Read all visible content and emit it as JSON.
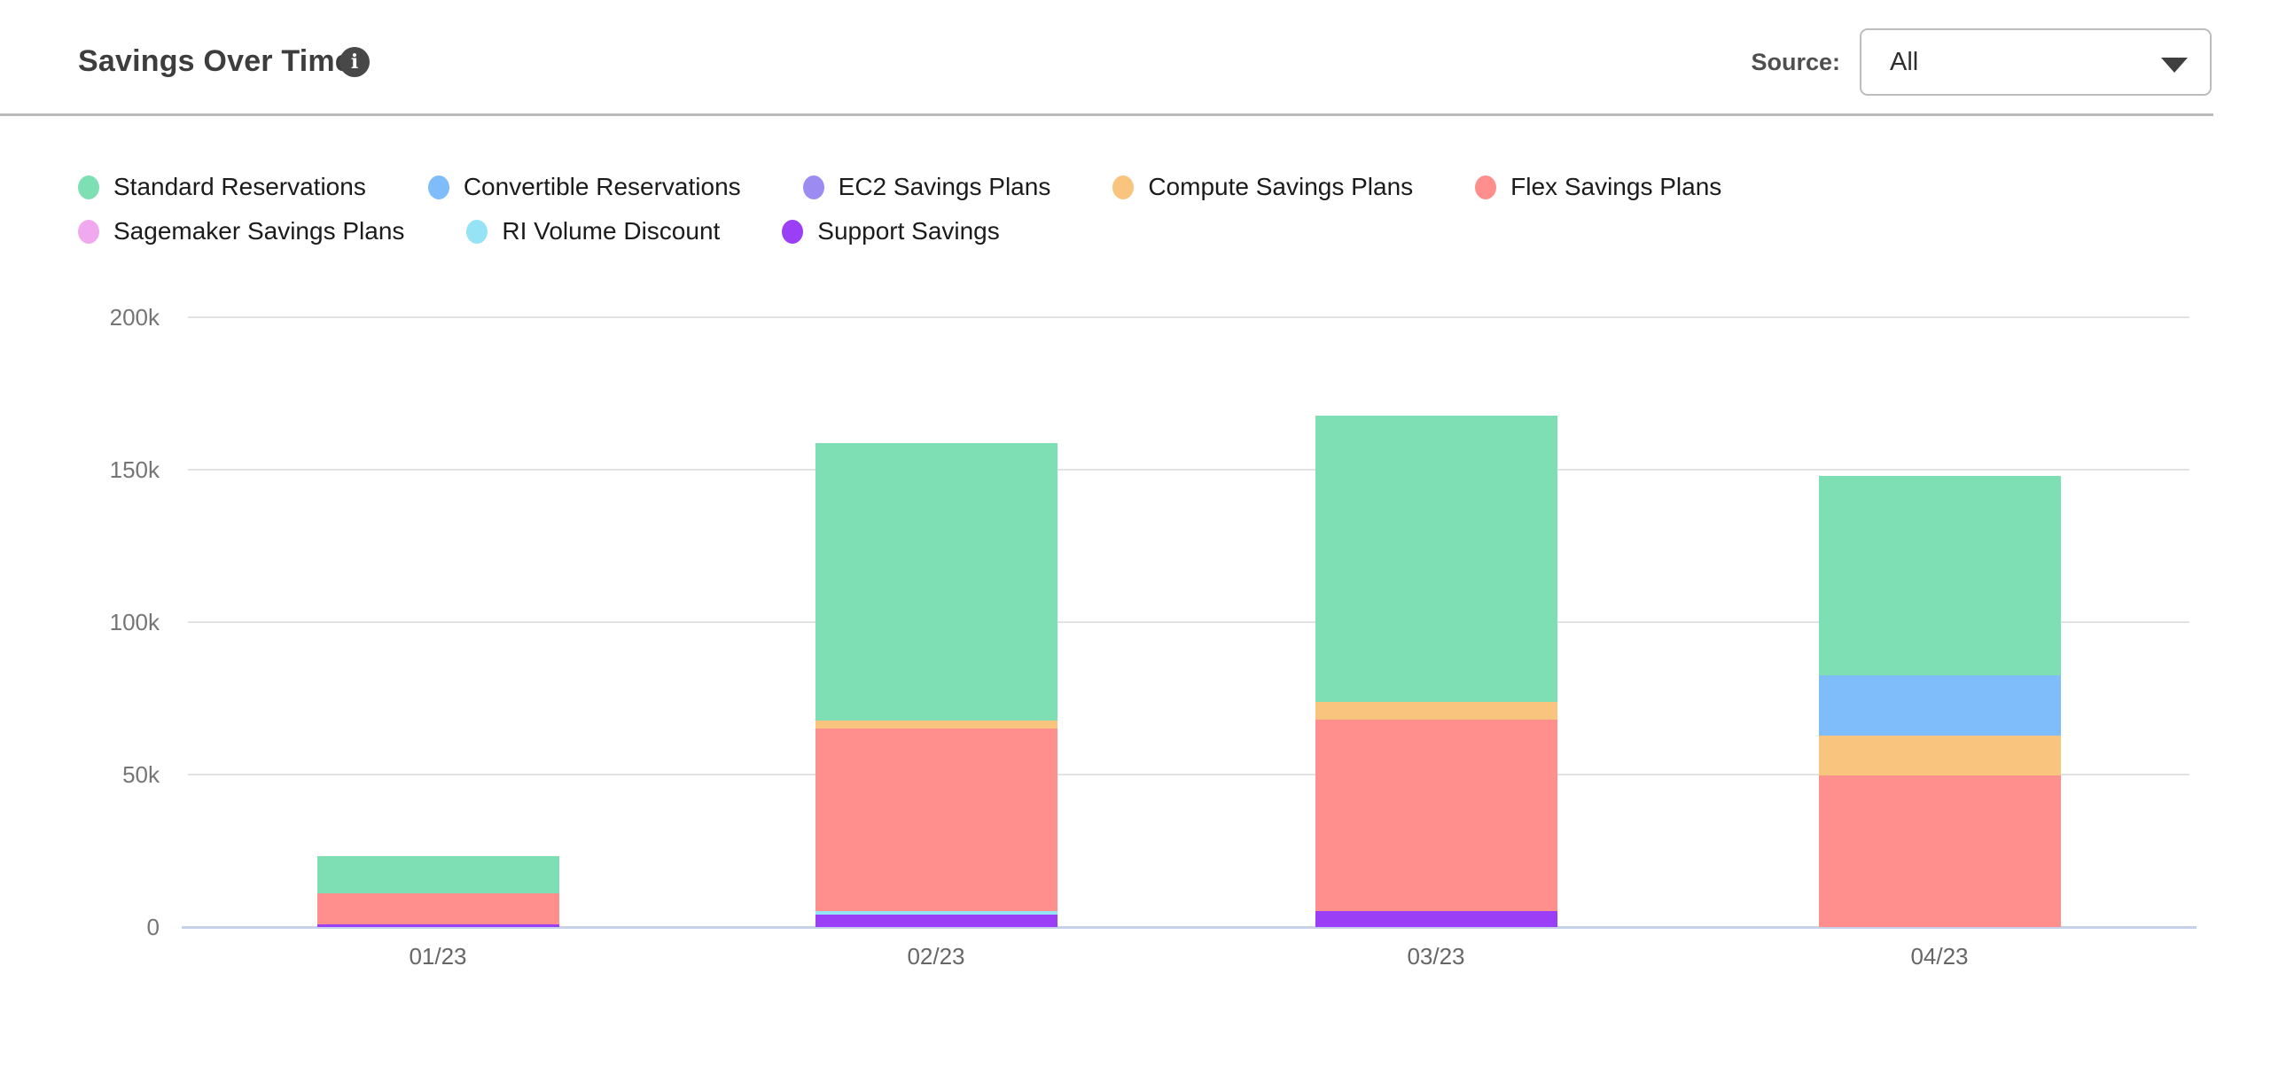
{
  "header": {
    "title": "Savings Over Time",
    "info_icon_glyph": "i",
    "source_label": "Source:",
    "source_value": "All"
  },
  "legend": {
    "rows": [
      [
        {
          "label": "Standard Reservations",
          "color": "#7edeb4"
        },
        {
          "label": "Convertible Reservations",
          "color": "#7ebcfa"
        },
        {
          "label": "EC2 Savings Plans",
          "color": "#9c8cf2"
        },
        {
          "label": "Compute Savings Plans",
          "color": "#f9c57e"
        },
        {
          "label": "Flex Savings Plans",
          "color": "#ff8f8d"
        }
      ],
      [
        {
          "label": "Sagemaker Savings Plans",
          "color": "#f0a9ef"
        },
        {
          "label": "RI Volume Discount",
          "color": "#97e3f6"
        },
        {
          "label": "Support Savings",
          "color": "#9a3ff6"
        }
      ]
    ]
  },
  "chart_data": {
    "type": "bar",
    "stacked": true,
    "title": "Savings Over Time",
    "categories": [
      "01/23",
      "02/23",
      "03/23",
      "04/23"
    ],
    "value_unit": "thousands",
    "series": [
      {
        "name": "Standard Reservations",
        "color": "#7edeb4",
        "values": [
          12.2,
          91.0,
          94.0,
          65.5
        ]
      },
      {
        "name": "Convertible Reservations",
        "color": "#7ebcfa",
        "values": [
          0,
          0,
          0,
          19.8
        ]
      },
      {
        "name": "EC2 Savings Plans",
        "color": "#9c8cf2",
        "values": [
          0,
          0,
          0,
          0
        ]
      },
      {
        "name": "Compute Savings Plans",
        "color": "#f9c57e",
        "values": [
          0,
          2.6,
          5.8,
          13.0
        ]
      },
      {
        "name": "Flex Savings Plans",
        "color": "#ff8f8d",
        "values": [
          10.2,
          60.0,
          62.8,
          49.7
        ]
      },
      {
        "name": "Sagemaker Savings Plans",
        "color": "#f0a9ef",
        "values": [
          0,
          0,
          0,
          0
        ]
      },
      {
        "name": "RI Volume Discount",
        "color": "#97e3f6",
        "values": [
          0,
          1.2,
          0,
          0
        ]
      },
      {
        "name": "Support Savings",
        "color": "#9a3ff6",
        "values": [
          0.9,
          4.0,
          5.2,
          0
        ]
      }
    ],
    "stack_order_bottom_to_top": [
      "Support Savings",
      "RI Volume Discount",
      "Sagemaker Savings Plans",
      "Flex Savings Plans",
      "Compute Savings Plans",
      "EC2 Savings Plans",
      "Convertible Reservations",
      "Standard Reservations"
    ],
    "totals": [
      23.3,
      158.8,
      167.8,
      148.0
    ],
    "y_ticks": [
      "0",
      "50k",
      "100k",
      "150k",
      "200k"
    ],
    "y_tick_values": [
      0,
      50,
      100,
      150,
      200
    ],
    "ylim": [
      0,
      200
    ],
    "grid": true,
    "legend_position": "top"
  }
}
